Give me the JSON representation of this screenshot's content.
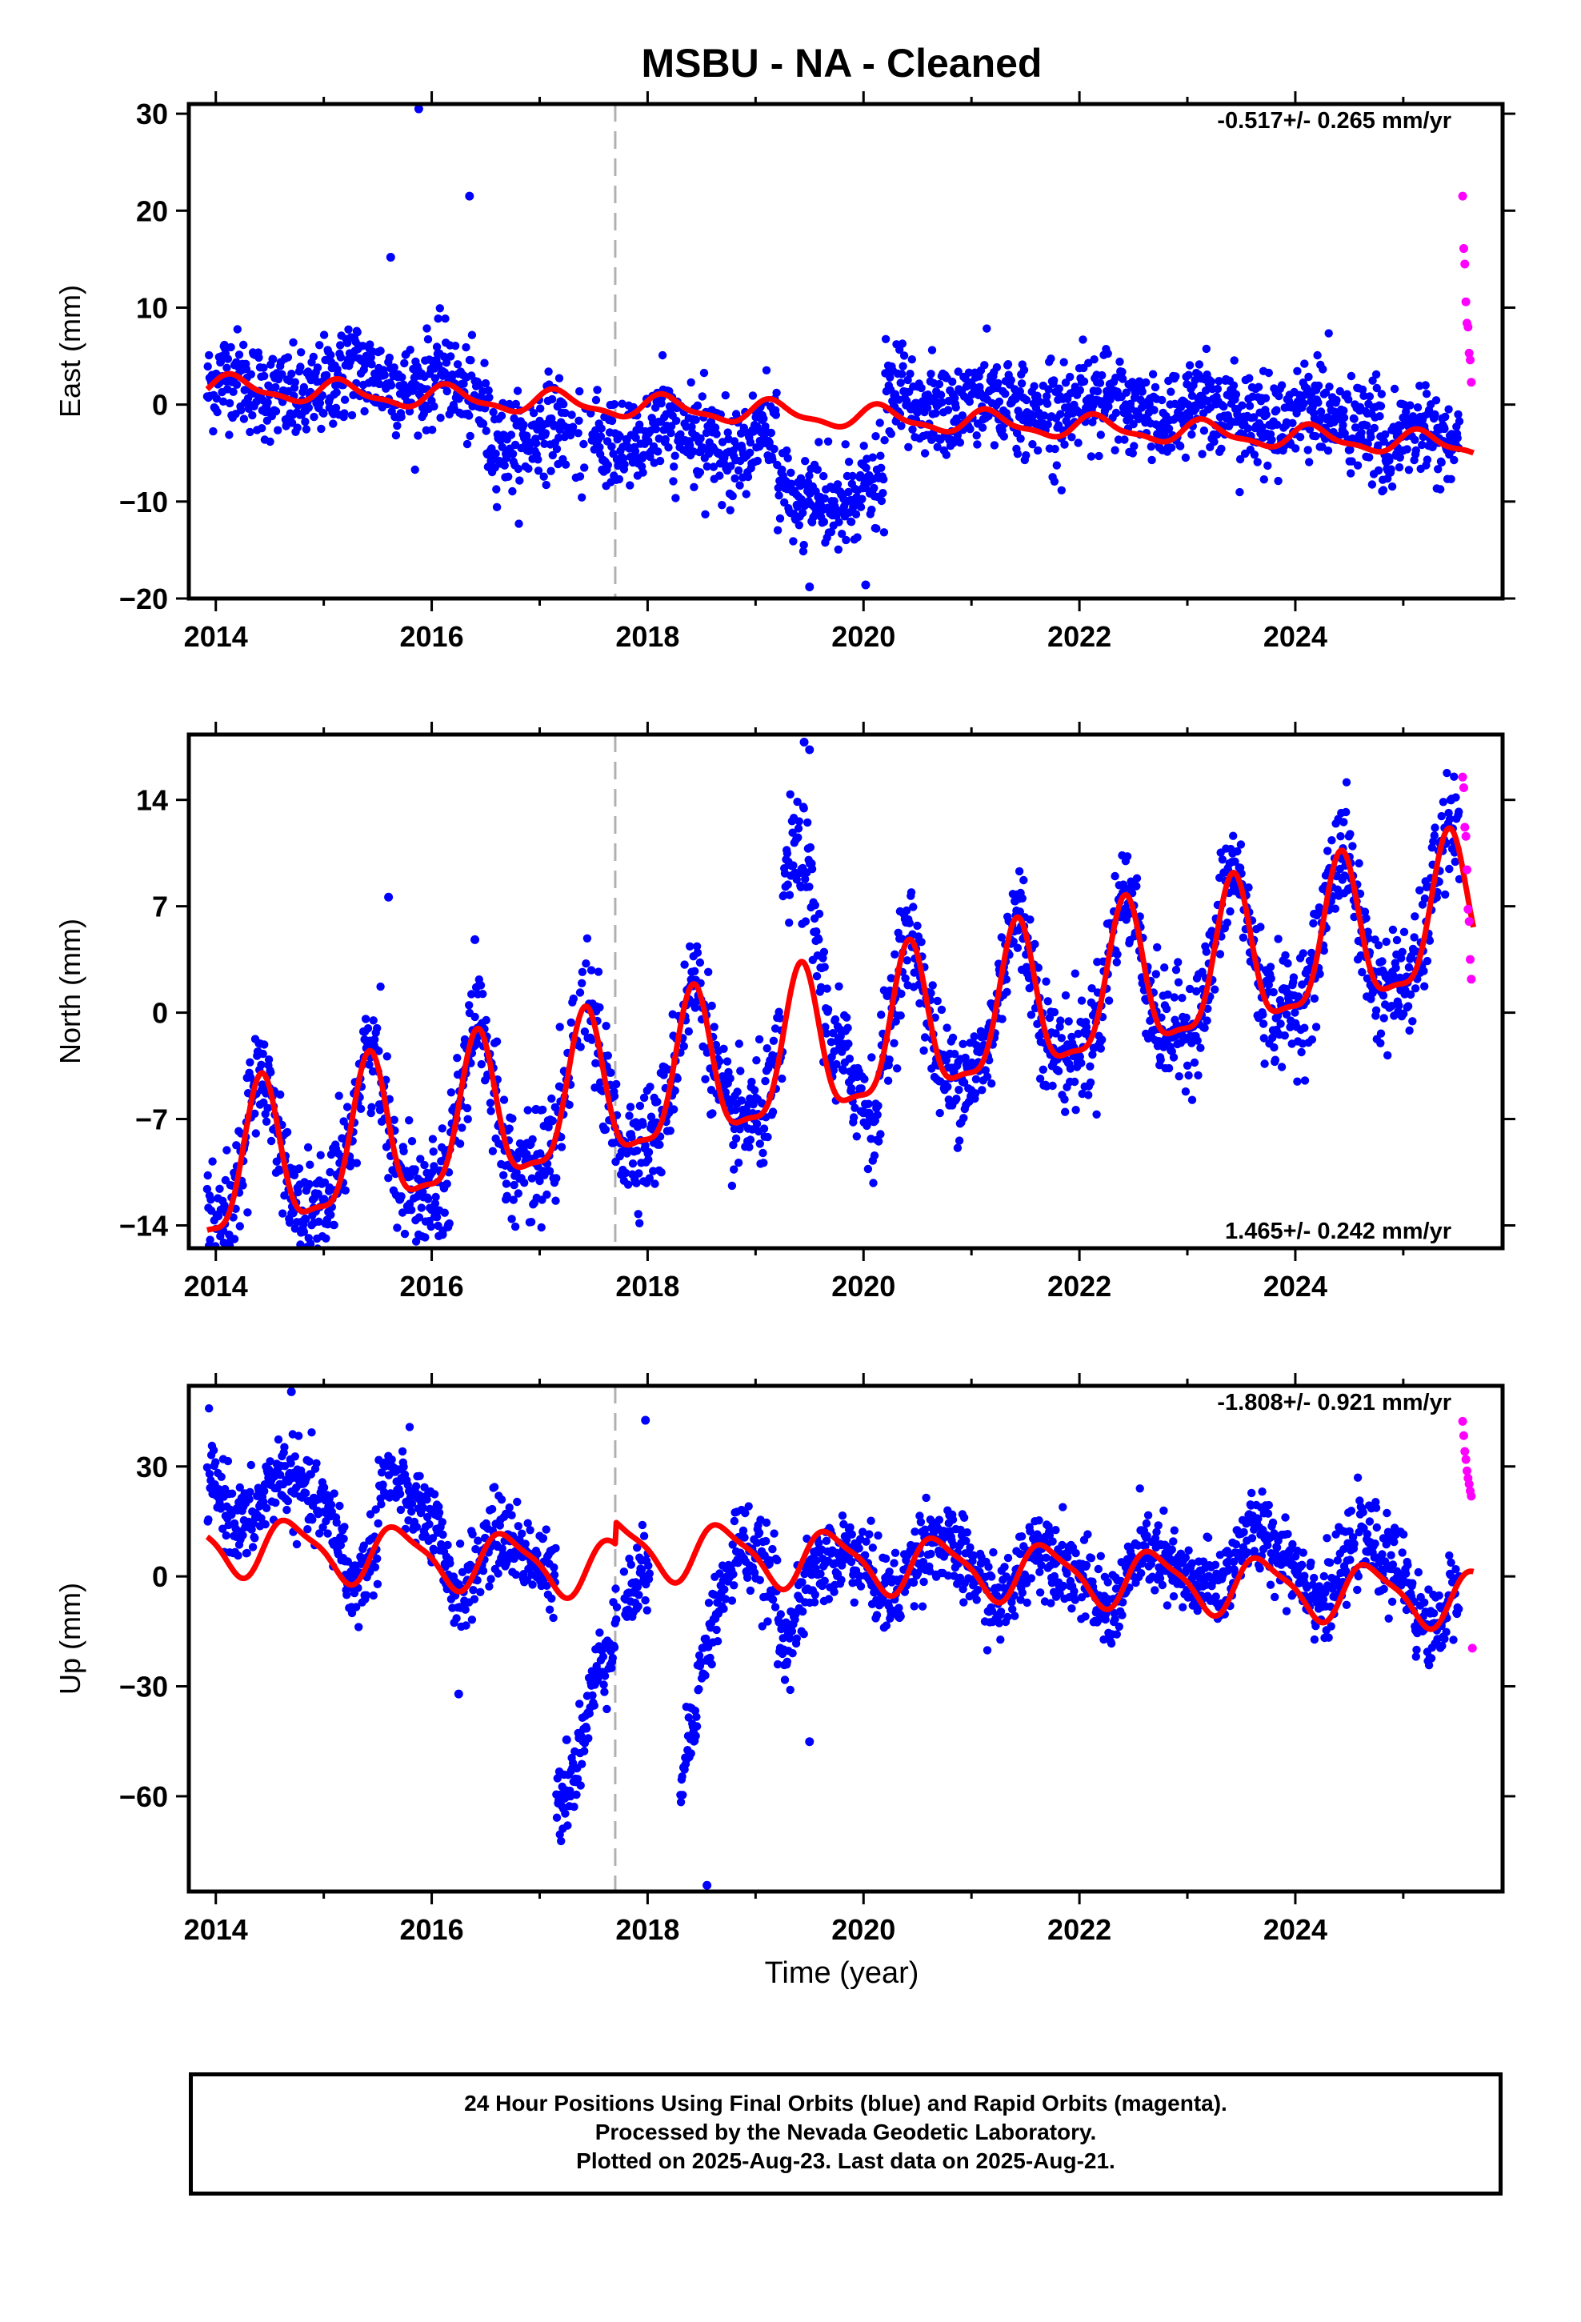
{
  "title": "MSBU  - NA - Cleaned",
  "colors": {
    "final": "#0000ff",
    "rapid": "#ff00ff",
    "fit": "#ff0000",
    "gap_line": "#b0b0b0"
  },
  "xlabel": "Time (year)",
  "footer": {
    "line1": "24 Hour Positions Using Final Orbits (blue) and Rapid Orbits (magenta).",
    "line2": "Processed by the Nevada Geodetic Laboratory.",
    "line3": "Plotted on 2025-Aug-23. Last data on 2025-Aug-21."
  },
  "chart_data": [
    {
      "type": "scatter",
      "component": "east",
      "ylabel": "East (mm)",
      "rate_text": "-0.517+/- 0.265 mm/yr",
      "rate_position": "top-right",
      "xlim": [
        2013.75,
        2025.92
      ],
      "ylim": [
        -20,
        31
      ],
      "xticks": [
        2014,
        2016,
        2018,
        2020,
        2022,
        2024
      ],
      "yticks": [
        -20,
        -10,
        0,
        10,
        20,
        30
      ],
      "vline_x": 2017.7,
      "grid": false,
      "fit": {
        "rate": -0.517,
        "offset_2020": -1.3,
        "amp1": 1.1,
        "amp2": 0.4,
        "phase1": 0.5,
        "phase2": 0.3,
        "steps": []
      },
      "noise": 2.4,
      "anomalies": [
        {
          "from": 2015.2,
          "to": 2016.2,
          "values": [
            2.6,
            1.2
          ]
        },
        {
          "from": 2016.5,
          "to": 2019.2,
          "values": [
            -3.5,
            -3
          ]
        },
        {
          "from": 2019.2,
          "to": 2020.2,
          "values": [
            -9,
            -8
          ]
        },
        {
          "from": 2020.2,
          "to": 2021.6,
          "values": [
            2,
            1.5
          ]
        },
        {
          "from": 2021.6,
          "to": 2024.8,
          "values": [
            2.5,
            2
          ]
        }
      ],
      "outliers": [
        [
          2015.88,
          30.5
        ],
        [
          2016.35,
          21.5
        ],
        [
          2015.62,
          15.2
        ],
        [
          2019.5,
          -18.8
        ],
        [
          2020.02,
          -18.6
        ]
      ],
      "rapid": {
        "x": [
          2025.55,
          2025.56,
          2025.57,
          2025.58,
          2025.59,
          2025.6,
          2025.61,
          2025.62,
          2025.63
        ],
        "y": [
          21.5,
          16.1,
          14.5,
          10.6,
          8.4,
          8.0,
          5.3,
          4.6,
          2.3
        ]
      }
    },
    {
      "type": "scatter",
      "component": "north",
      "ylabel": "North (mm)",
      "rate_text": "1.465+/- 0.242 mm/yr",
      "rate_position": "bottom-right",
      "xlim": [
        2013.75,
        2025.92
      ],
      "ylim": [
        -15.5,
        18.3
      ],
      "xticks": [
        2014,
        2016,
        2018,
        2020,
        2022,
        2024
      ],
      "yticks": [
        -14,
        -7,
        0,
        7,
        14
      ],
      "vline_x": 2017.7,
      "grid": false,
      "fit": {
        "rate": 1.465,
        "offset_2020": -2.0,
        "amp1": 4.8,
        "amp2": 1.4,
        "phase1": 5.2,
        "phase2": 2.5,
        "steps": []
      },
      "noise": 1.8,
      "anomalies": [
        {
          "from": 2019.25,
          "to": 2019.75,
          "values": [
            9.5,
            2
          ]
        },
        {
          "from": 2019.75,
          "to": 2020.15,
          "values": [
            4,
            -3
          ]
        }
      ],
      "outliers": [
        [
          2016.1,
          -14.6
        ],
        [
          2016.15,
          -14.1
        ],
        [
          2015.6,
          7.6
        ],
        [
          2016.4,
          4.8
        ],
        [
          2019.45,
          17.8
        ],
        [
          2019.5,
          17.3
        ]
      ],
      "rapid": {
        "x": [
          2025.55,
          2025.56,
          2025.57,
          2025.58,
          2025.59,
          2025.6,
          2025.61,
          2025.62,
          2025.63
        ],
        "y": [
          15.5,
          14.8,
          12.2,
          11.6,
          9.4,
          6.8,
          6.0,
          3.5,
          2.2
        ]
      }
    },
    {
      "type": "scatter",
      "component": "up",
      "ylabel": "Up (mm)",
      "rate_text": "-1.808+/- 0.921 mm/yr",
      "rate_position": "top-right",
      "xlim": [
        2013.75,
        2025.92
      ],
      "ylim": [
        -86,
        52
      ],
      "xticks": [
        2014,
        2016,
        2018,
        2020,
        2022,
        2024
      ],
      "yticks": [
        -60,
        -30,
        0,
        30
      ],
      "vline_x": 2017.7,
      "grid": false,
      "fit": {
        "rate": -1.808,
        "offset_2020": -2.0,
        "amp1": 7.5,
        "amp2": 2.0,
        "phase1": 3.4,
        "phase2": 1.0,
        "steps": [
          [
            2017.7,
            6
          ]
        ]
      },
      "noise": 5.5,
      "anomalies": [
        {
          "from": 2013.9,
          "to": 2015.2,
          "values": [
            16,
            10
          ]
        },
        {
          "from": 2015.5,
          "to": 2016.1,
          "values": [
            14,
            8
          ]
        },
        {
          "from": 2017.15,
          "to": 2018.0,
          "values": [
            -58,
            -6
          ]
        },
        {
          "from": 2018.3,
          "to": 2018.8,
          "values": [
            -54,
            -8
          ]
        },
        {
          "from": 2019.2,
          "to": 2019.8,
          "values": [
            -14,
            -6
          ]
        },
        {
          "from": 2023.1,
          "to": 2024.5,
          "values": [
            8,
            6
          ]
        },
        {
          "from": 2024.5,
          "to": 2025.1,
          "values": [
            7,
            5
          ]
        }
      ],
      "outliers": [
        [
          2014.7,
          50.4
        ],
        [
          2017.98,
          42.6
        ],
        [
          2016.25,
          -32.1
        ],
        [
          2018.55,
          -84.3
        ],
        [
          2017.25,
          -44.6
        ],
        [
          2019.5,
          -45.1
        ]
      ],
      "rapid": {
        "x": [
          2025.55,
          2025.56,
          2025.57,
          2025.58,
          2025.59,
          2025.6,
          2025.61,
          2025.62,
          2025.63,
          2025.64
        ],
        "y": [
          42.3,
          38.4,
          34.1,
          31.9,
          28.8,
          26.8,
          25.2,
          23.3,
          21.9,
          -19.6
        ]
      }
    }
  ]
}
